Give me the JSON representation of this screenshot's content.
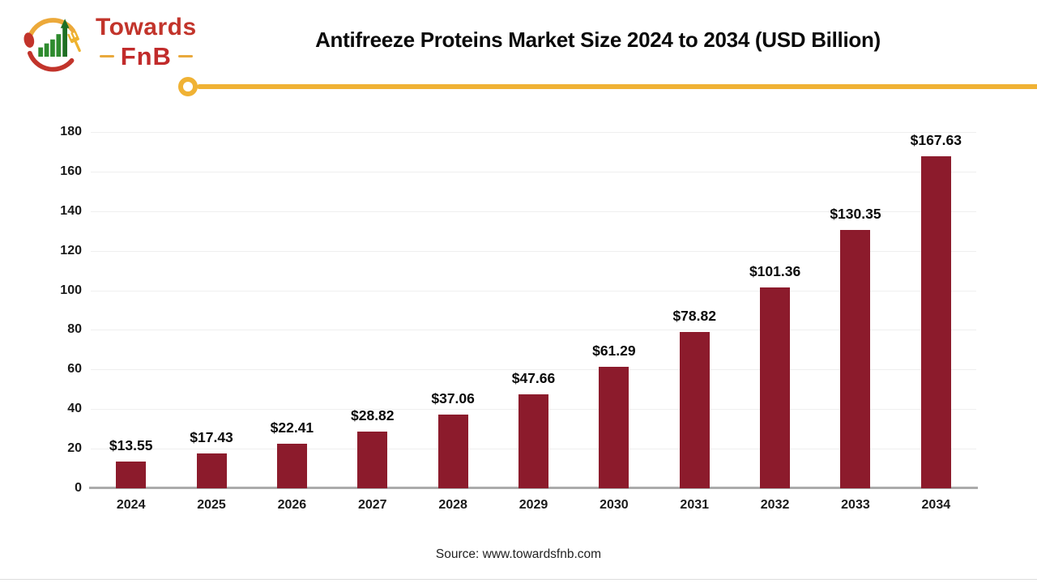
{
  "logo": {
    "brand_top": "Towards",
    "brand_bottom": "FnB",
    "colors": {
      "red": "#c2342b",
      "yellow": "#f0b234",
      "green": "#2e8b2e",
      "dark_green": "#1e6f24"
    }
  },
  "header": {
    "title": "Antifreeze Proteins Market Size 2024 to 2034 (USD Billion)"
  },
  "divider": {
    "color": "#f0b234"
  },
  "chart_data": {
    "type": "bar",
    "title": "Antifreeze Proteins Market Size 2024 to 2034 (USD Billion)",
    "categories": [
      "2024",
      "2025",
      "2026",
      "2027",
      "2028",
      "2029",
      "2030",
      "2031",
      "2032",
      "2033",
      "2034"
    ],
    "values": [
      13.55,
      17.43,
      22.41,
      28.82,
      37.06,
      47.66,
      61.29,
      78.82,
      101.36,
      130.35,
      167.63
    ],
    "value_labels": [
      "$13.55",
      "$17.43",
      "$22.41",
      "$28.82",
      "$37.06",
      "$47.66",
      "$61.29",
      "$78.82",
      "$101.36",
      "$130.35",
      "$167.63"
    ],
    "xlabel": "",
    "ylabel": "",
    "ylim": [
      0,
      180
    ],
    "ytick_step": 20,
    "grid": true,
    "legend": "none",
    "bar_color": "#8c1b2c"
  },
  "footer": {
    "source": "Source: www.towardsfnb.com"
  }
}
